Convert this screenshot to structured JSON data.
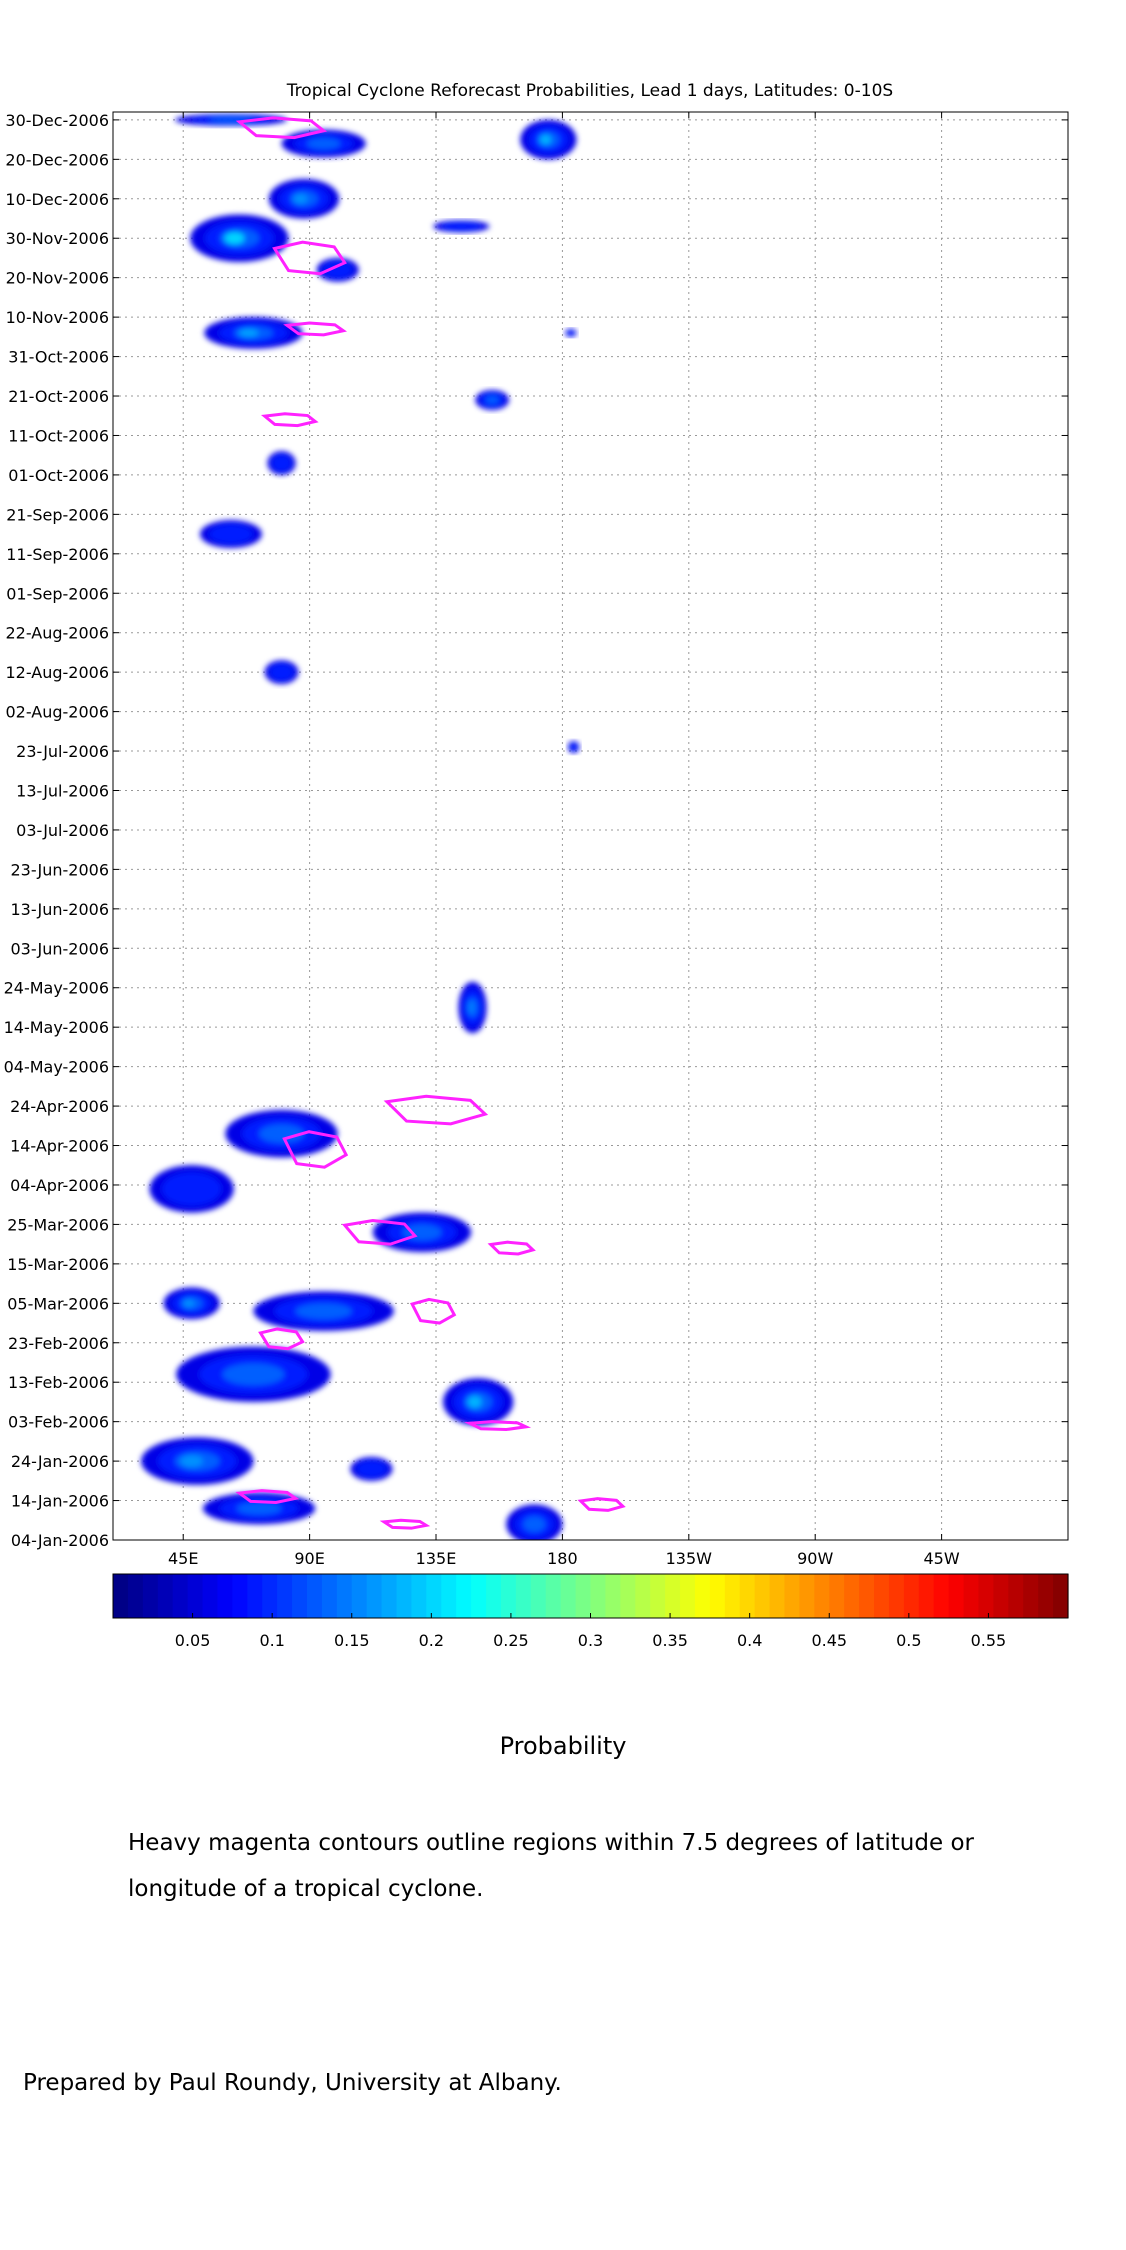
{
  "chart_data": {
    "type": "heatmap",
    "title": "Tropical Cyclone Reforecast Probabilities, Lead 1 days, Latitudes: 0-10S",
    "xlabel": "",
    "ylabel": "",
    "x_range_deg_east": [
      20,
      360
    ],
    "x_ticks": [
      {
        "deg": 45,
        "label": "45E"
      },
      {
        "deg": 90,
        "label": "90E"
      },
      {
        "deg": 135,
        "label": "135E"
      },
      {
        "deg": 180,
        "label": "180"
      },
      {
        "deg": 225,
        "label": "135W"
      },
      {
        "deg": 270,
        "label": "90W"
      },
      {
        "deg": 315,
        "label": "45W"
      }
    ],
    "y_range_days": [
      0,
      362
    ],
    "y_ticks": [
      {
        "day": 0,
        "label": "04-Jan-2006"
      },
      {
        "day": 10,
        "label": "14-Jan-2006"
      },
      {
        "day": 20,
        "label": "24-Jan-2006"
      },
      {
        "day": 30,
        "label": "03-Feb-2006"
      },
      {
        "day": 40,
        "label": "13-Feb-2006"
      },
      {
        "day": 50,
        "label": "23-Feb-2006"
      },
      {
        "day": 60,
        "label": "05-Mar-2006"
      },
      {
        "day": 70,
        "label": "15-Mar-2006"
      },
      {
        "day": 80,
        "label": "25-Mar-2006"
      },
      {
        "day": 90,
        "label": "04-Apr-2006"
      },
      {
        "day": 100,
        "label": "14-Apr-2006"
      },
      {
        "day": 110,
        "label": "24-Apr-2006"
      },
      {
        "day": 120,
        "label": "04-May-2006"
      },
      {
        "day": 130,
        "label": "14-May-2006"
      },
      {
        "day": 140,
        "label": "24-May-2006"
      },
      {
        "day": 150,
        "label": "03-Jun-2006"
      },
      {
        "day": 160,
        "label": "13-Jun-2006"
      },
      {
        "day": 170,
        "label": "23-Jun-2006"
      },
      {
        "day": 180,
        "label": "03-Jul-2006"
      },
      {
        "day": 190,
        "label": "13-Jul-2006"
      },
      {
        "day": 200,
        "label": "23-Jul-2006"
      },
      {
        "day": 210,
        "label": "02-Aug-2006"
      },
      {
        "day": 220,
        "label": "12-Aug-2006"
      },
      {
        "day": 230,
        "label": "22-Aug-2006"
      },
      {
        "day": 240,
        "label": "01-Sep-2006"
      },
      {
        "day": 250,
        "label": "11-Sep-2006"
      },
      {
        "day": 260,
        "label": "21-Sep-2006"
      },
      {
        "day": 270,
        "label": "01-Oct-2006"
      },
      {
        "day": 280,
        "label": "11-Oct-2006"
      },
      {
        "day": 290,
        "label": "21-Oct-2006"
      },
      {
        "day": 300,
        "label": "31-Oct-2006"
      },
      {
        "day": 310,
        "label": "10-Nov-2006"
      },
      {
        "day": 320,
        "label": "20-Nov-2006"
      },
      {
        "day": 330,
        "label": "30-Nov-2006"
      },
      {
        "day": 340,
        "label": "10-Dec-2006"
      },
      {
        "day": 350,
        "label": "20-Dec-2006"
      },
      {
        "day": 360,
        "label": "30-Dec-2006"
      }
    ],
    "grid": true,
    "colorbar": {
      "label": "Probability",
      "range": [
        0,
        0.6
      ],
      "ticks": [
        0.05,
        0.1,
        0.15,
        0.2,
        0.25,
        0.3,
        0.35,
        0.4,
        0.45,
        0.5,
        0.55
      ],
      "tick_labels": [
        "0.05",
        "0.1",
        "0.15",
        "0.2",
        "0.25",
        "0.3",
        "0.35",
        "0.4",
        "0.45",
        "0.5",
        "0.55"
      ]
    },
    "probability_blobs": [
      {
        "lon": 62,
        "day": 360,
        "w": 40,
        "h": 3,
        "p": 0.12
      },
      {
        "lon": 95,
        "day": 354,
        "w": 30,
        "h": 7,
        "p": 0.12
      },
      {
        "lon": 175,
        "day": 355,
        "w": 20,
        "h": 10,
        "p": 0.18
      },
      {
        "lon": 88,
        "day": 340,
        "w": 25,
        "h": 10,
        "p": 0.16
      },
      {
        "lon": 65,
        "day": 330,
        "w": 35,
        "h": 12,
        "p": 0.2
      },
      {
        "lon": 100,
        "day": 322,
        "w": 15,
        "h": 6,
        "p": 0.1
      },
      {
        "lon": 144,
        "day": 333,
        "w": 20,
        "h": 3,
        "p": 0.1
      },
      {
        "lon": 70,
        "day": 306,
        "w": 35,
        "h": 8,
        "p": 0.17
      },
      {
        "lon": 155,
        "day": 289,
        "w": 12,
        "h": 5,
        "p": 0.12
      },
      {
        "lon": 183,
        "day": 306,
        "w": 4,
        "h": 2,
        "p": 0.06
      },
      {
        "lon": 80,
        "day": 273,
        "w": 10,
        "h": 6,
        "p": 0.08
      },
      {
        "lon": 62,
        "day": 255,
        "w": 22,
        "h": 7,
        "p": 0.08
      },
      {
        "lon": 80,
        "day": 220,
        "w": 12,
        "h": 6,
        "p": 0.09
      },
      {
        "lon": 184,
        "day": 201,
        "w": 4,
        "h": 3,
        "p": 0.08
      },
      {
        "lon": 148,
        "day": 135,
        "w": 10,
        "h": 13,
        "p": 0.15
      },
      {
        "lon": 80,
        "day": 103,
        "w": 40,
        "h": 12,
        "p": 0.12
      },
      {
        "lon": 48,
        "day": 89,
        "w": 30,
        "h": 12,
        "p": 0.1
      },
      {
        "lon": 130,
        "day": 78,
        "w": 35,
        "h": 10,
        "p": 0.12
      },
      {
        "lon": 95,
        "day": 58,
        "w": 50,
        "h": 10,
        "p": 0.13
      },
      {
        "lon": 48,
        "day": 60,
        "w": 20,
        "h": 8,
        "p": 0.16
      },
      {
        "lon": 70,
        "day": 42,
        "w": 55,
        "h": 14,
        "p": 0.13
      },
      {
        "lon": 150,
        "day": 35,
        "w": 25,
        "h": 12,
        "p": 0.18
      },
      {
        "lon": 50,
        "day": 20,
        "w": 40,
        "h": 12,
        "p": 0.16
      },
      {
        "lon": 72,
        "day": 8,
        "w": 40,
        "h": 8,
        "p": 0.12
      },
      {
        "lon": 170,
        "day": 4,
        "w": 20,
        "h": 10,
        "p": 0.12
      },
      {
        "lon": 112,
        "day": 18,
        "w": 15,
        "h": 6,
        "p": 0.09
      }
    ],
    "cyclone_contours": [
      {
        "lon": 80,
        "day": 358,
        "w": 30,
        "h": 5
      },
      {
        "lon": 90,
        "day": 325,
        "w": 25,
        "h": 8
      },
      {
        "lon": 92,
        "day": 307,
        "w": 20,
        "h": 3
      },
      {
        "lon": 83,
        "day": 284,
        "w": 18,
        "h": 3
      },
      {
        "lon": 135,
        "day": 109,
        "w": 35,
        "h": 7
      },
      {
        "lon": 92,
        "day": 99,
        "w": 22,
        "h": 9
      },
      {
        "lon": 115,
        "day": 78,
        "w": 25,
        "h": 6
      },
      {
        "lon": 162,
        "day": 74,
        "w": 15,
        "h": 3
      },
      {
        "lon": 80,
        "day": 51,
        "w": 15,
        "h": 5
      },
      {
        "lon": 134,
        "day": 58,
        "w": 15,
        "h": 6
      },
      {
        "lon": 157,
        "day": 29,
        "w": 20,
        "h": 2
      },
      {
        "lon": 75,
        "day": 11,
        "w": 20,
        "h": 3
      },
      {
        "lon": 194,
        "day": 9,
        "w": 15,
        "h": 3
      },
      {
        "lon": 124,
        "day": 4,
        "w": 15,
        "h": 2
      }
    ]
  },
  "note": "Heavy magenta contours outline regions within 7.5 degrees of latitude or longitude of a tropical cyclone.",
  "credit": "Prepared by Paul Roundy, University at Albany.",
  "colors": {
    "contour": "#ff22ff",
    "grid": "#999999"
  }
}
